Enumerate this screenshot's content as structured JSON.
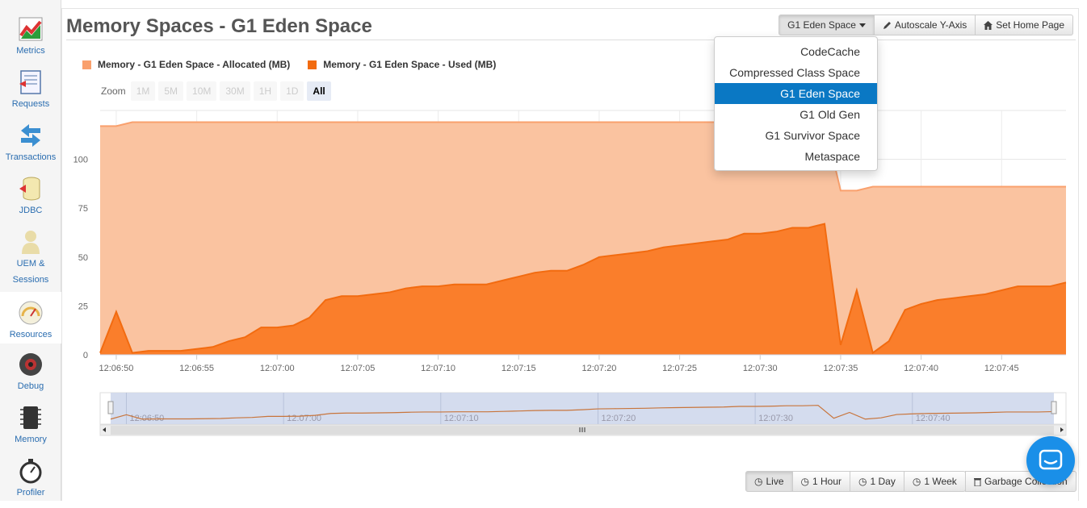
{
  "sidebar": {
    "items": [
      {
        "label": "Metrics",
        "icon": "metrics-chart-icon"
      },
      {
        "label": "Requests",
        "icon": "requests-icon"
      },
      {
        "label": "Transactions",
        "icon": "transactions-arrows-icon"
      },
      {
        "label": "JDBC",
        "icon": "database-icon"
      },
      {
        "label": "UEM &",
        "label2": "Sessions",
        "icon": "user-icon"
      },
      {
        "label": "Resources",
        "icon": "gauge-icon"
      },
      {
        "label": "Debug",
        "icon": "debug-icon"
      },
      {
        "label": "Memory",
        "icon": "memory-chip-icon"
      },
      {
        "label": "Profiler",
        "icon": "stopwatch-icon"
      }
    ]
  },
  "header": {
    "title": "Memory Spaces - G1 Eden Space",
    "space_button": "G1 Eden Space",
    "autoscale_button": "Autoscale Y-Axis",
    "home_button": "Set Home Page"
  },
  "dropdown": {
    "options": [
      "CodeCache",
      "Compressed Class Space",
      "G1 Eden Space",
      "G1 Old Gen",
      "G1 Survivor Space",
      "Metaspace"
    ],
    "selected": "G1 Eden Space"
  },
  "legend": {
    "allocated": "Memory - G1 Eden Space - Allocated (MB)",
    "used": "Memory - G1 Eden Space - Used (MB)"
  },
  "zoom": {
    "label": "Zoom",
    "options": [
      "1M",
      "5M",
      "10M",
      "30M",
      "1H",
      "1D",
      "All"
    ],
    "active": "All"
  },
  "colors": {
    "allocated_fill": "#fac3a0",
    "allocated_line": "#f9a06d",
    "used_fill": "#fa7e2b",
    "used_line": "#f26b10",
    "navigator_bg": "#ccd6eb",
    "accent": "#0a78c4"
  },
  "chart_data": {
    "type": "area",
    "x": [
      "12:06:49",
      "12:06:50",
      "12:06:51",
      "12:06:52",
      "12:06:53",
      "12:06:54",
      "12:06:55",
      "12:06:56",
      "12:06:57",
      "12:06:58",
      "12:06:59",
      "12:07:00",
      "12:07:01",
      "12:07:02",
      "12:07:03",
      "12:07:04",
      "12:07:05",
      "12:07:06",
      "12:07:07",
      "12:07:08",
      "12:07:09",
      "12:07:10",
      "12:07:11",
      "12:07:12",
      "12:07:13",
      "12:07:14",
      "12:07:15",
      "12:07:16",
      "12:07:17",
      "12:07:18",
      "12:07:19",
      "12:07:20",
      "12:07:21",
      "12:07:22",
      "12:07:23",
      "12:07:24",
      "12:07:25",
      "12:07:26",
      "12:07:27",
      "12:07:28",
      "12:07:29",
      "12:07:30",
      "12:07:31",
      "12:07:32",
      "12:07:33",
      "12:07:34",
      "12:07:35",
      "12:07:36",
      "12:07:37",
      "12:07:38",
      "12:07:39",
      "12:07:40",
      "12:07:41",
      "12:07:42",
      "12:07:43",
      "12:07:44",
      "12:07:45",
      "12:07:46",
      "12:07:47",
      "12:07:48",
      "12:07:49"
    ],
    "series": [
      {
        "name": "Memory - G1 Eden Space - Allocated (MB)",
        "values": [
          117,
          117,
          119,
          119,
          119,
          119,
          119,
          119,
          119,
          119,
          119,
          119,
          119,
          119,
          119,
          119,
          119,
          119,
          119,
          119,
          119,
          119,
          119,
          119,
          119,
          119,
          119,
          119,
          119,
          119,
          119,
          119,
          119,
          119,
          119,
          119,
          119,
          119,
          119,
          119,
          119,
          119,
          119,
          119,
          119,
          119,
          84,
          84,
          86,
          86,
          86,
          86,
          86,
          86,
          86,
          86,
          86,
          86,
          86,
          86,
          86
        ]
      },
      {
        "name": "Memory - G1 Eden Space - Used (MB)",
        "values": [
          1,
          22,
          1,
          2,
          2,
          2,
          3,
          4,
          7,
          9,
          14,
          14,
          15,
          19,
          28,
          30,
          30,
          31,
          32,
          34,
          35,
          35,
          36,
          36,
          36,
          38,
          40,
          42,
          43,
          43,
          46,
          50,
          51,
          52,
          53,
          55,
          56,
          57,
          58,
          59,
          62,
          62,
          63,
          65,
          65,
          67,
          5,
          33,
          1,
          7,
          23,
          26,
          28,
          29,
          30,
          31,
          33,
          35,
          35,
          35,
          37
        ]
      }
    ],
    "ylim": [
      0,
      125
    ],
    "yticks": [
      0,
      25,
      50,
      75,
      100
    ],
    "xticks": [
      "12:06:50",
      "12:06:55",
      "12:07:00",
      "12:07:05",
      "12:07:10",
      "12:07:15",
      "12:07:20",
      "12:07:25",
      "12:07:30",
      "12:07:35",
      "12:07:40",
      "12:07:45"
    ],
    "navigator_ticks": [
      "12:06:50",
      "12:07:00",
      "12:07:10",
      "12:07:20",
      "12:07:30",
      "12:07:40"
    ],
    "grid": true,
    "legend_position": "top-left"
  },
  "time_range": {
    "options": [
      "Live",
      "1 Hour",
      "1 Day",
      "1 Week"
    ],
    "active": "Live",
    "gc_button": "Garbage Collection"
  },
  "chat": {
    "icon": "chat-icon"
  }
}
